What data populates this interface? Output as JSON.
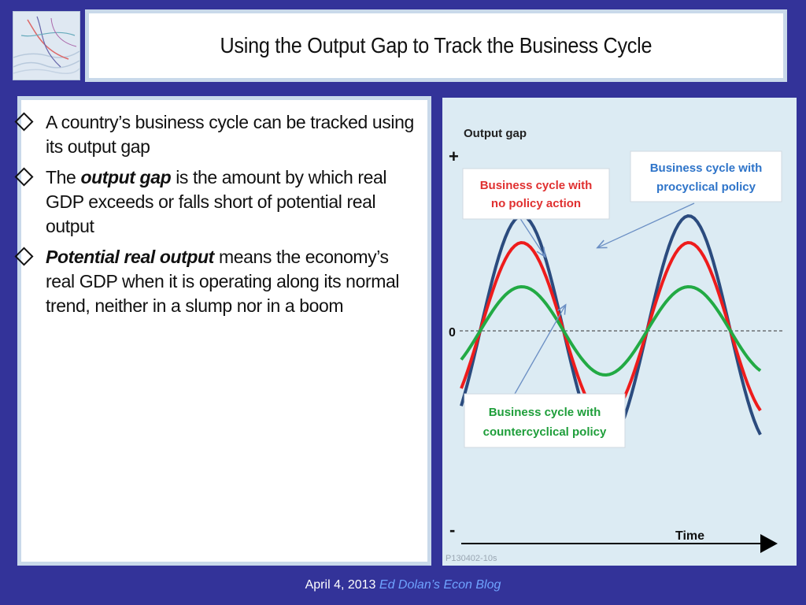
{
  "title": "Using the Output Gap to Track the Business Cycle",
  "bullets": [
    {
      "parts": [
        {
          "text": "A country’s business cycle can be tracked using its output gap",
          "bold": false
        }
      ]
    },
    {
      "parts": [
        {
          "text": "The ",
          "bold": false
        },
        {
          "text": "output gap",
          "bold": true
        },
        {
          "text": " is the amount by which real GDP exceeds or falls short  of potential real output",
          "bold": false
        }
      ]
    },
    {
      "parts": [
        {
          "text": "Potential real output",
          "bold": true
        },
        {
          "text": " means the economy’s real GDP when it is operating along its normal trend, neither in a slump nor in a boom",
          "bold": false
        }
      ]
    }
  ],
  "diagram": {
    "y_label": "Output gap",
    "plus": "+",
    "minus": "-",
    "zero": "0",
    "x_label": "Time",
    "code": "P130402-10s",
    "callouts": {
      "no_policy": [
        "Business cycle with",
        "no policy action"
      ],
      "procyclical": [
        "Business cycle with",
        "procyclical policy"
      ],
      "countercyclical": [
        "Business cycle with",
        "countercyclical policy"
      ]
    },
    "colors": {
      "procyclical": "#2b4b7e",
      "no_policy": "#ee1c1c",
      "countercyclical": "#22aa44",
      "no_policy_text": "#e03030",
      "procyclical_text": "#2e74c9",
      "countercyclical_text": "#1e9e3a"
    }
  },
  "footer": {
    "date": "April 4, 2013",
    "blog": "Ed Dolan’s Econ Blog"
  }
}
